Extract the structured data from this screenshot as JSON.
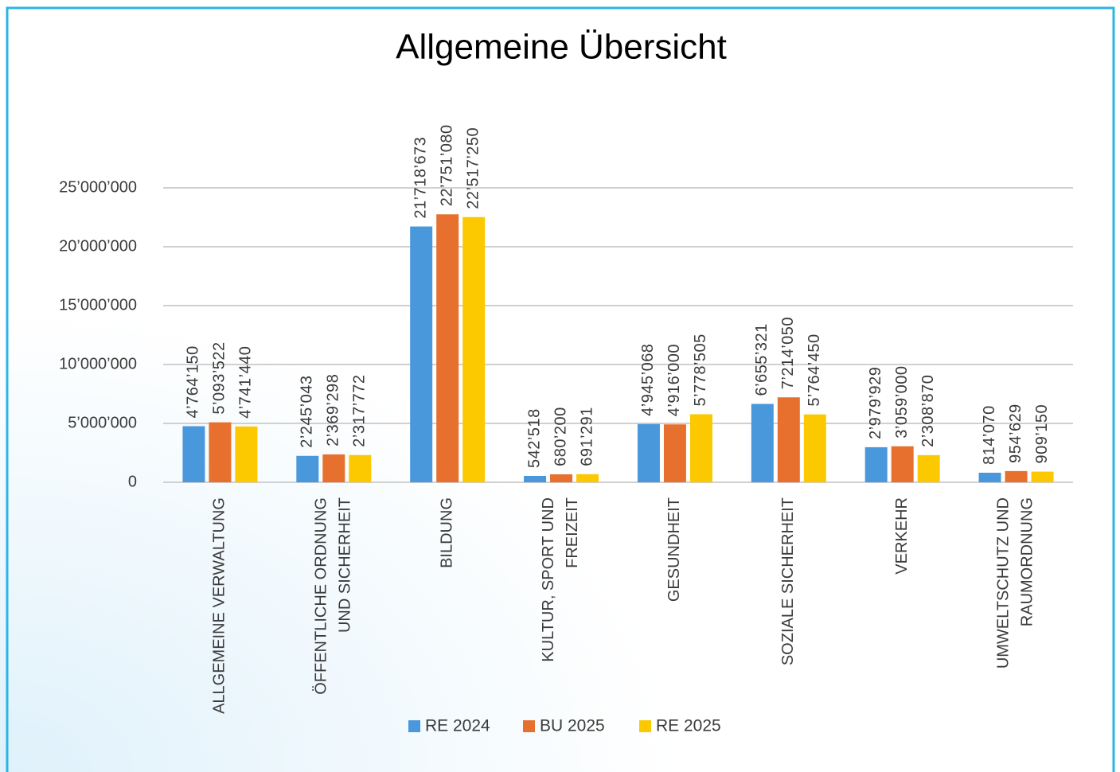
{
  "chart_data": {
    "type": "bar",
    "title": "Allgemeine Übersicht",
    "categories": [
      "ALLGEMEINE VERWALTUNG",
      "ÖFFENTLICHE ORDNUNG\nUND SICHERHEIT",
      "BILDUNG",
      "KULTUR, SPORT UND\nFREIZEIT",
      "GESUNDHEIT",
      "SOZIALE SICHERHEIT",
      "VERKEHR",
      "UMWELTSCHUTZ UND\nRAUMORDNUNG"
    ],
    "series": [
      {
        "name": "RE 2024",
        "color": "#4a98dc",
        "values": [
          4764150,
          2245043,
          21718673,
          542518,
          4945068,
          6655321,
          2979929,
          814070
        ],
        "value_labels": [
          "4’764’150",
          "2’245’043",
          "21’718’673",
          "542’518",
          "4’945’068",
          "6’655’321",
          "2’979’929",
          "814’070"
        ]
      },
      {
        "name": "BU 2025",
        "color": "#e8702e",
        "values": [
          5093522,
          2369298,
          22751080,
          680200,
          4916000,
          7214050,
          3059000,
          954629
        ],
        "value_labels": [
          "5’093’522",
          "2’369’298",
          "22’751’080",
          "680’200",
          "4’916’000",
          "7’214’050",
          "3’059’000",
          "954’629"
        ]
      },
      {
        "name": "RE 2025",
        "color": "#fcc800",
        "values": [
          4741440,
          2317772,
          22517250,
          691291,
          5778505,
          5764450,
          2308870,
          909150
        ],
        "value_labels": [
          "4’741’440",
          "2’317’772",
          "22’517’250",
          "691’291",
          "5’778’505",
          "5’764’450",
          "2’308’870",
          "909’150"
        ]
      }
    ],
    "ylim": [
      0,
      25000000
    ],
    "yticks": [
      0,
      {
        "value": 5000000,
        "label": "5’000’000"
      },
      {
        "value": 10000000,
        "label": "10’000’000"
      },
      {
        "value": 15000000,
        "label": "15’000’000"
      },
      {
        "value": 20000000,
        "label": "20’000’000"
      },
      {
        "value": 25000000,
        "label": "25’000’000"
      }
    ],
    "grid": true,
    "legend": "bottom"
  }
}
